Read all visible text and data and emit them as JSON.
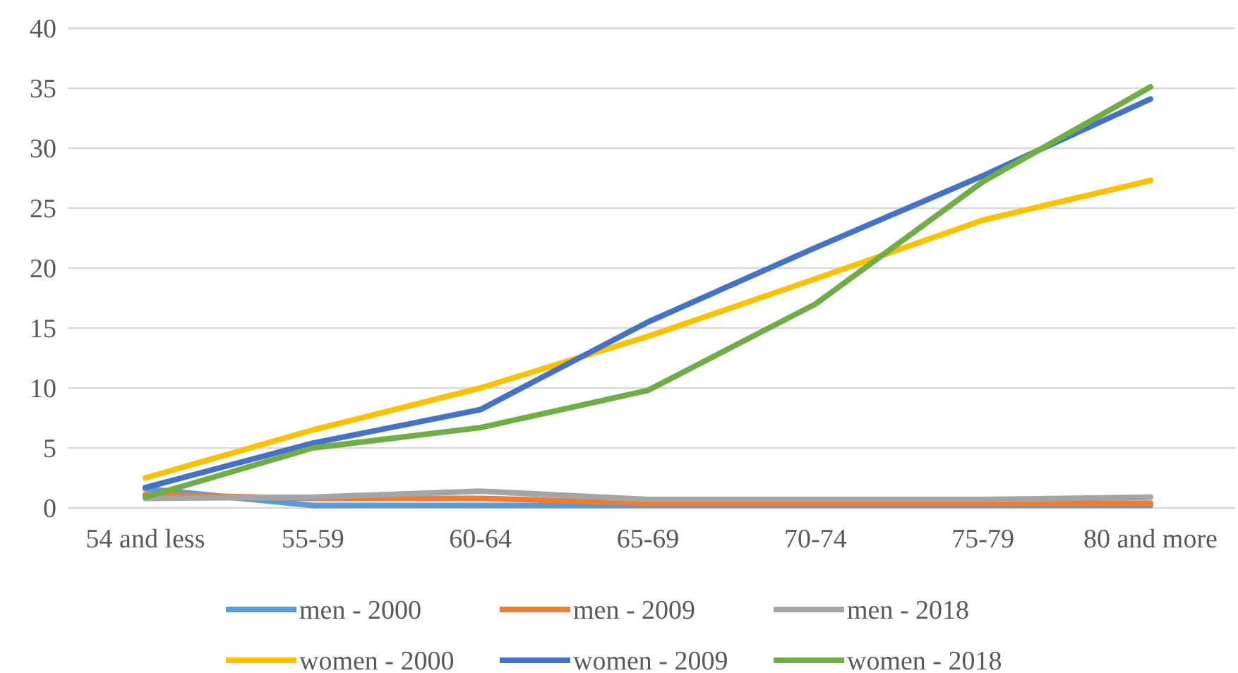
{
  "chart_data": {
    "type": "line",
    "categories": [
      "54 and less",
      "55-59",
      "60-64",
      "65-69",
      "70-74",
      "75-79",
      "80 and more"
    ],
    "series": [
      {
        "name": "men - 2000",
        "color": "#5b9bd5",
        "values": [
          1.6,
          0.2,
          0.2,
          0.2,
          0.2,
          0.2,
          0.2
        ]
      },
      {
        "name": "men - 2009",
        "color": "#ed7d31",
        "values": [
          1.1,
          0.8,
          0.8,
          0.4,
          0.4,
          0.4,
          0.4
        ]
      },
      {
        "name": "men - 2018",
        "color": "#a5a5a5",
        "values": [
          0.8,
          0.9,
          1.4,
          0.7,
          0.7,
          0.7,
          0.9
        ]
      },
      {
        "name": "women - 2000",
        "color": "#ffc000",
        "values": [
          2.5,
          6.5,
          10,
          14.3,
          19.1,
          24,
          27.3
        ]
      },
      {
        "name": "women - 2009",
        "color": "#4472c4",
        "values": [
          1.7,
          5.4,
          8.2,
          15.5,
          21.7,
          27.7,
          34.1
        ]
      },
      {
        "name": "women - 2018",
        "color": "#70ad47",
        "values": [
          0.9,
          5,
          6.7,
          9.8,
          17,
          27.2,
          35.1
        ]
      }
    ],
    "ylim": [
      0,
      40
    ],
    "yticks": [
      0,
      5,
      10,
      15,
      20,
      25,
      30,
      35,
      40
    ],
    "grid": "y",
    "legend": "bottom",
    "marker": "none",
    "line_style": "solid"
  }
}
